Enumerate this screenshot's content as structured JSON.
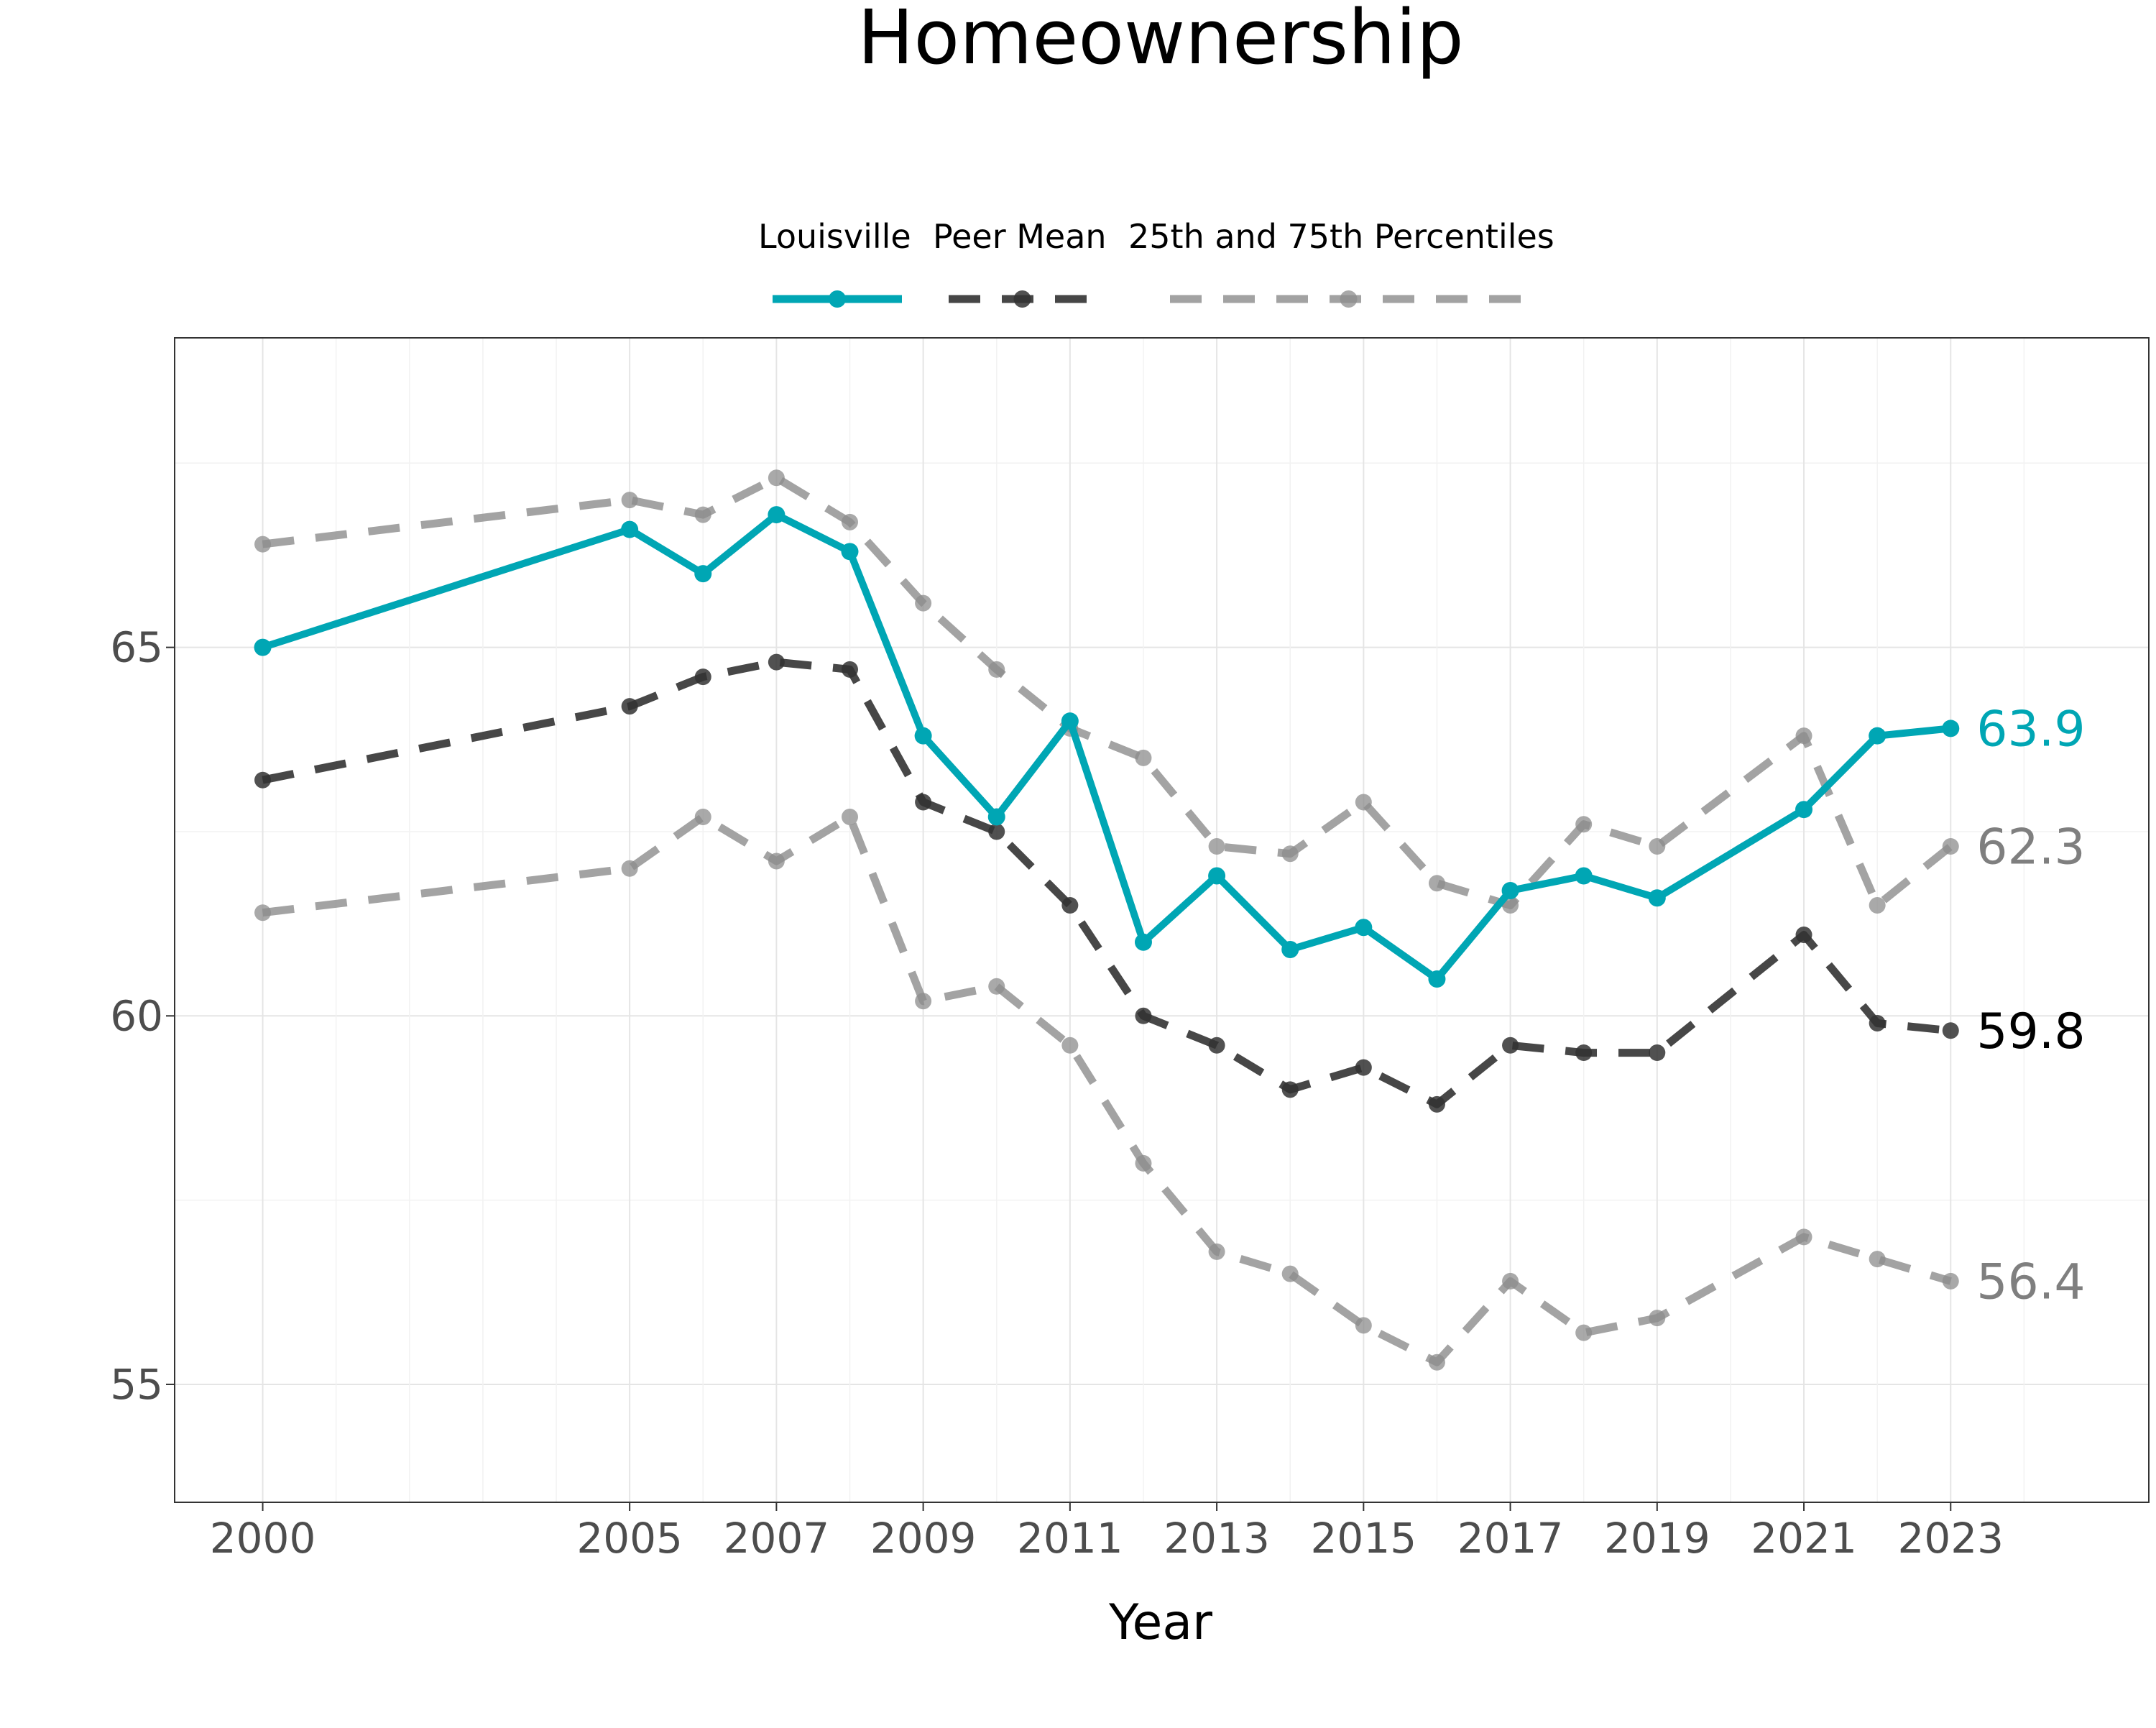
{
  "chart_data": {
    "type": "line",
    "title": "Homeownership",
    "xlabel": "Year",
    "ylabel": "",
    "xlim": [
      1998.8,
      2025.7
    ],
    "ylim": [
      53.4,
      69.2
    ],
    "x_ticks": [
      2000,
      2005,
      2007,
      2009,
      2011,
      2013,
      2015,
      2017,
      2019,
      2021,
      2023
    ],
    "x_tick_labels": [
      "2000",
      "2005",
      "2007",
      "2009",
      "2011",
      "2013",
      "2015",
      "2017",
      "2019",
      "2021",
      "2023"
    ],
    "y_ticks": [
      55,
      60,
      65
    ],
    "y_tick_labels": [
      "55",
      "60",
      "65"
    ],
    "grid": true,
    "legend_position": "top",
    "x": [
      2000,
      2005,
      2006,
      2007,
      2008,
      2009,
      2010,
      2011,
      2012,
      2013,
      2014,
      2015,
      2016,
      2017,
      2018,
      2019,
      2021,
      2022,
      2023
    ],
    "series": [
      {
        "name": "Louisville",
        "color": "#00A6B4",
        "style": "solid",
        "values": [
          65.0,
          66.6,
          66.0,
          66.8,
          66.3,
          63.8,
          62.7,
          64.0,
          61.0,
          61.9,
          60.9,
          61.2,
          60.5,
          61.7,
          61.9,
          61.6,
          62.8,
          63.8,
          63.9
        ],
        "end_label": "63.9"
      },
      {
        "name": "Peer Mean",
        "color": "#333333",
        "style": "dashed",
        "values": [
          63.2,
          64.2,
          64.6,
          64.8,
          64.7,
          62.9,
          62.5,
          61.5,
          60.0,
          59.6,
          59.0,
          59.3,
          58.8,
          59.6,
          59.5,
          59.5,
          61.1,
          59.9,
          59.8
        ],
        "end_label": "59.8"
      },
      {
        "name": "25th and 75th Percentiles",
        "color": "#8C8C8C",
        "style": "dashed",
        "values": [
          66.4,
          67.0,
          66.8,
          67.3,
          66.7,
          65.6,
          64.7,
          63.9,
          63.5,
          62.3,
          62.2,
          62.9,
          61.8,
          61.5,
          62.6,
          62.3,
          63.8,
          61.5,
          62.3
        ],
        "end_label": "62.3"
      },
      {
        "name": "25th and 75th Percentiles",
        "color": "#8C8C8C",
        "style": "dashed",
        "values": [
          61.4,
          62.0,
          62.7,
          62.1,
          62.7,
          60.2,
          60.4,
          59.6,
          58.0,
          56.8,
          56.5,
          55.8,
          55.3,
          56.4,
          55.7,
          55.9,
          57.0,
          56.7,
          56.4
        ],
        "end_label": "56.4"
      }
    ],
    "legend": [
      {
        "label": "Louisville",
        "color": "#00A6B4",
        "style": "solid"
      },
      {
        "label": "Peer Mean",
        "color": "#333333",
        "style": "dashed"
      },
      {
        "label": "25th and 75th Percentiles",
        "color": "#8C8C8C",
        "style": "dashed"
      }
    ],
    "end_label_colors": [
      "#00A6B4",
      "#000000",
      "#7F7F7F",
      "#7F7F7F"
    ]
  }
}
